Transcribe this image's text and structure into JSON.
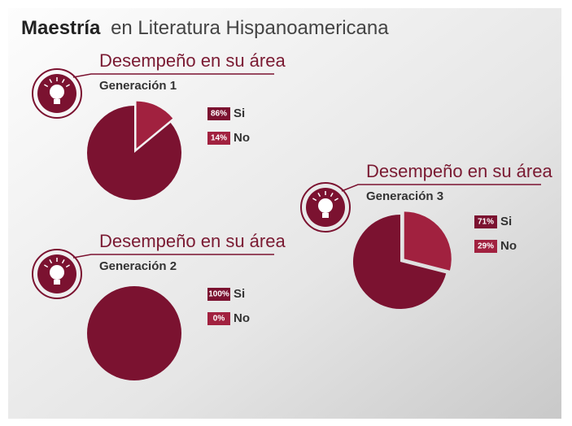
{
  "title_bold": "Maestría",
  "title_rest": "en Literatura Hispanoamericana",
  "chart_data": [
    {
      "type": "pie",
      "title": "Desempeño en su área",
      "subtitle": "Generación 1",
      "categories": [
        "Si",
        "No"
      ],
      "values": [
        86,
        14
      ],
      "value_labels": [
        "86%",
        "14%"
      ],
      "colors": [
        "#7b1230",
        "#a1213f"
      ]
    },
    {
      "type": "pie",
      "title": "Desempeño en su área",
      "subtitle": "Generación 2",
      "categories": [
        "Si",
        "No"
      ],
      "values": [
        100,
        0
      ],
      "value_labels": [
        "100%",
        "0%"
      ],
      "colors": [
        "#7b1230",
        "#a1213f"
      ]
    },
    {
      "type": "pie",
      "title": "Desempeño en su área",
      "subtitle": "Generación 3",
      "categories": [
        "Si",
        "No"
      ],
      "values": [
        71,
        29
      ],
      "value_labels": [
        "71%",
        "29%"
      ],
      "colors": [
        "#7b1230",
        "#a1213f"
      ]
    }
  ]
}
